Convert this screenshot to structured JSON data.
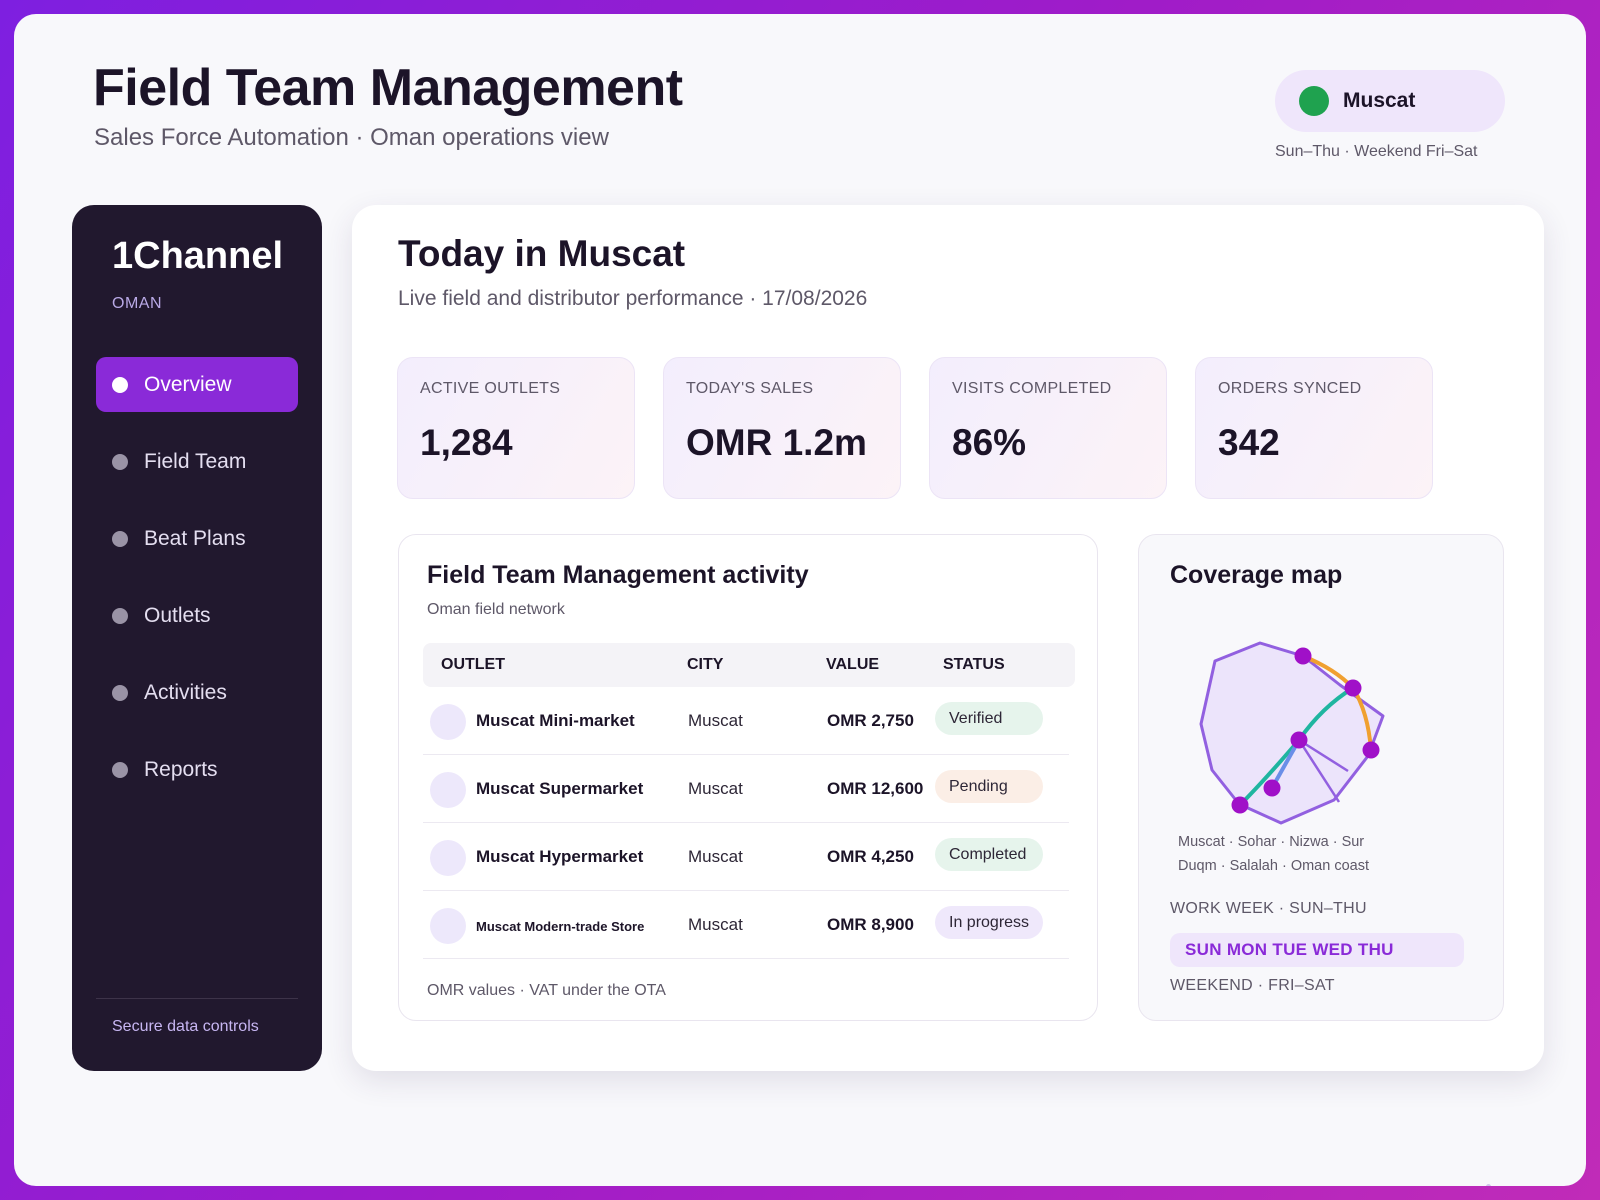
{
  "header": {
    "title": "Field Team Management",
    "subtitle": "Sales Force Automation · Oman operations view",
    "region": "Muscat",
    "region_status_color": "#1fa24f",
    "region_note": "Sun–Thu · Weekend Fri–Sat"
  },
  "sidebar": {
    "brand": "1Channel",
    "country": "OMAN",
    "items": [
      {
        "label": "Overview",
        "active": true
      },
      {
        "label": "Field Team",
        "active": false
      },
      {
        "label": "Beat Plans",
        "active": false
      },
      {
        "label": "Outlets",
        "active": false
      },
      {
        "label": "Activities",
        "active": false
      },
      {
        "label": "Reports",
        "active": false
      }
    ],
    "footer": "Secure data controls"
  },
  "main": {
    "title": "Today in Muscat",
    "subtitle": "Live field and distributor performance · 17/08/2026"
  },
  "kpis": [
    {
      "label": "ACTIVE OUTLETS",
      "value": "1,284"
    },
    {
      "label": "TODAY'S SALES",
      "value": "OMR 1.2m"
    },
    {
      "label": "VISITS COMPLETED",
      "value": "86%"
    },
    {
      "label": "ORDERS SYNCED",
      "value": "342"
    }
  ],
  "activity": {
    "title": "Field Team Management activity",
    "subtitle": "Oman field network",
    "columns": [
      "OUTLET",
      "CITY",
      "VALUE",
      "STATUS"
    ],
    "rows": [
      {
        "outlet": "Muscat Mini-market",
        "city": "Muscat",
        "value": "OMR 2,750",
        "status": "Verified",
        "status_color": "#e6f4ec"
      },
      {
        "outlet": "Muscat Supermarket",
        "city": "Muscat",
        "value": "OMR 12,600",
        "status": "Pending",
        "status_color": "#fbeee6"
      },
      {
        "outlet": "Muscat Hypermarket",
        "city": "Muscat",
        "value": "OMR 4,250",
        "status": "Completed",
        "status_color": "#e6f4ec"
      },
      {
        "outlet": "Muscat Modern-trade Store",
        "city": "Muscat",
        "value": "OMR 8,900",
        "status": "In progress",
        "status_color": "#efe8fb"
      }
    ],
    "footer": "OMR values · VAT under the OTA"
  },
  "coverage": {
    "title": "Coverage map",
    "cities_line1": "Muscat · Sohar · Nizwa · Sur",
    "cities_line2": "Duqm · Salalah · Oman coast",
    "work_week_label": "WORK WEEK · SUN–THU",
    "work_days": "SUN MON TUE WED THU",
    "weekend_label": "WEEKEND · FRI–SAT"
  },
  "colors": {
    "accent": "#8a2ad8",
    "sidebar_bg": "#21182e",
    "route_teal": "#1fb5a0",
    "route_orange": "#f0a030",
    "map_outline": "#9260e0",
    "map_node": "#a010c8"
  }
}
